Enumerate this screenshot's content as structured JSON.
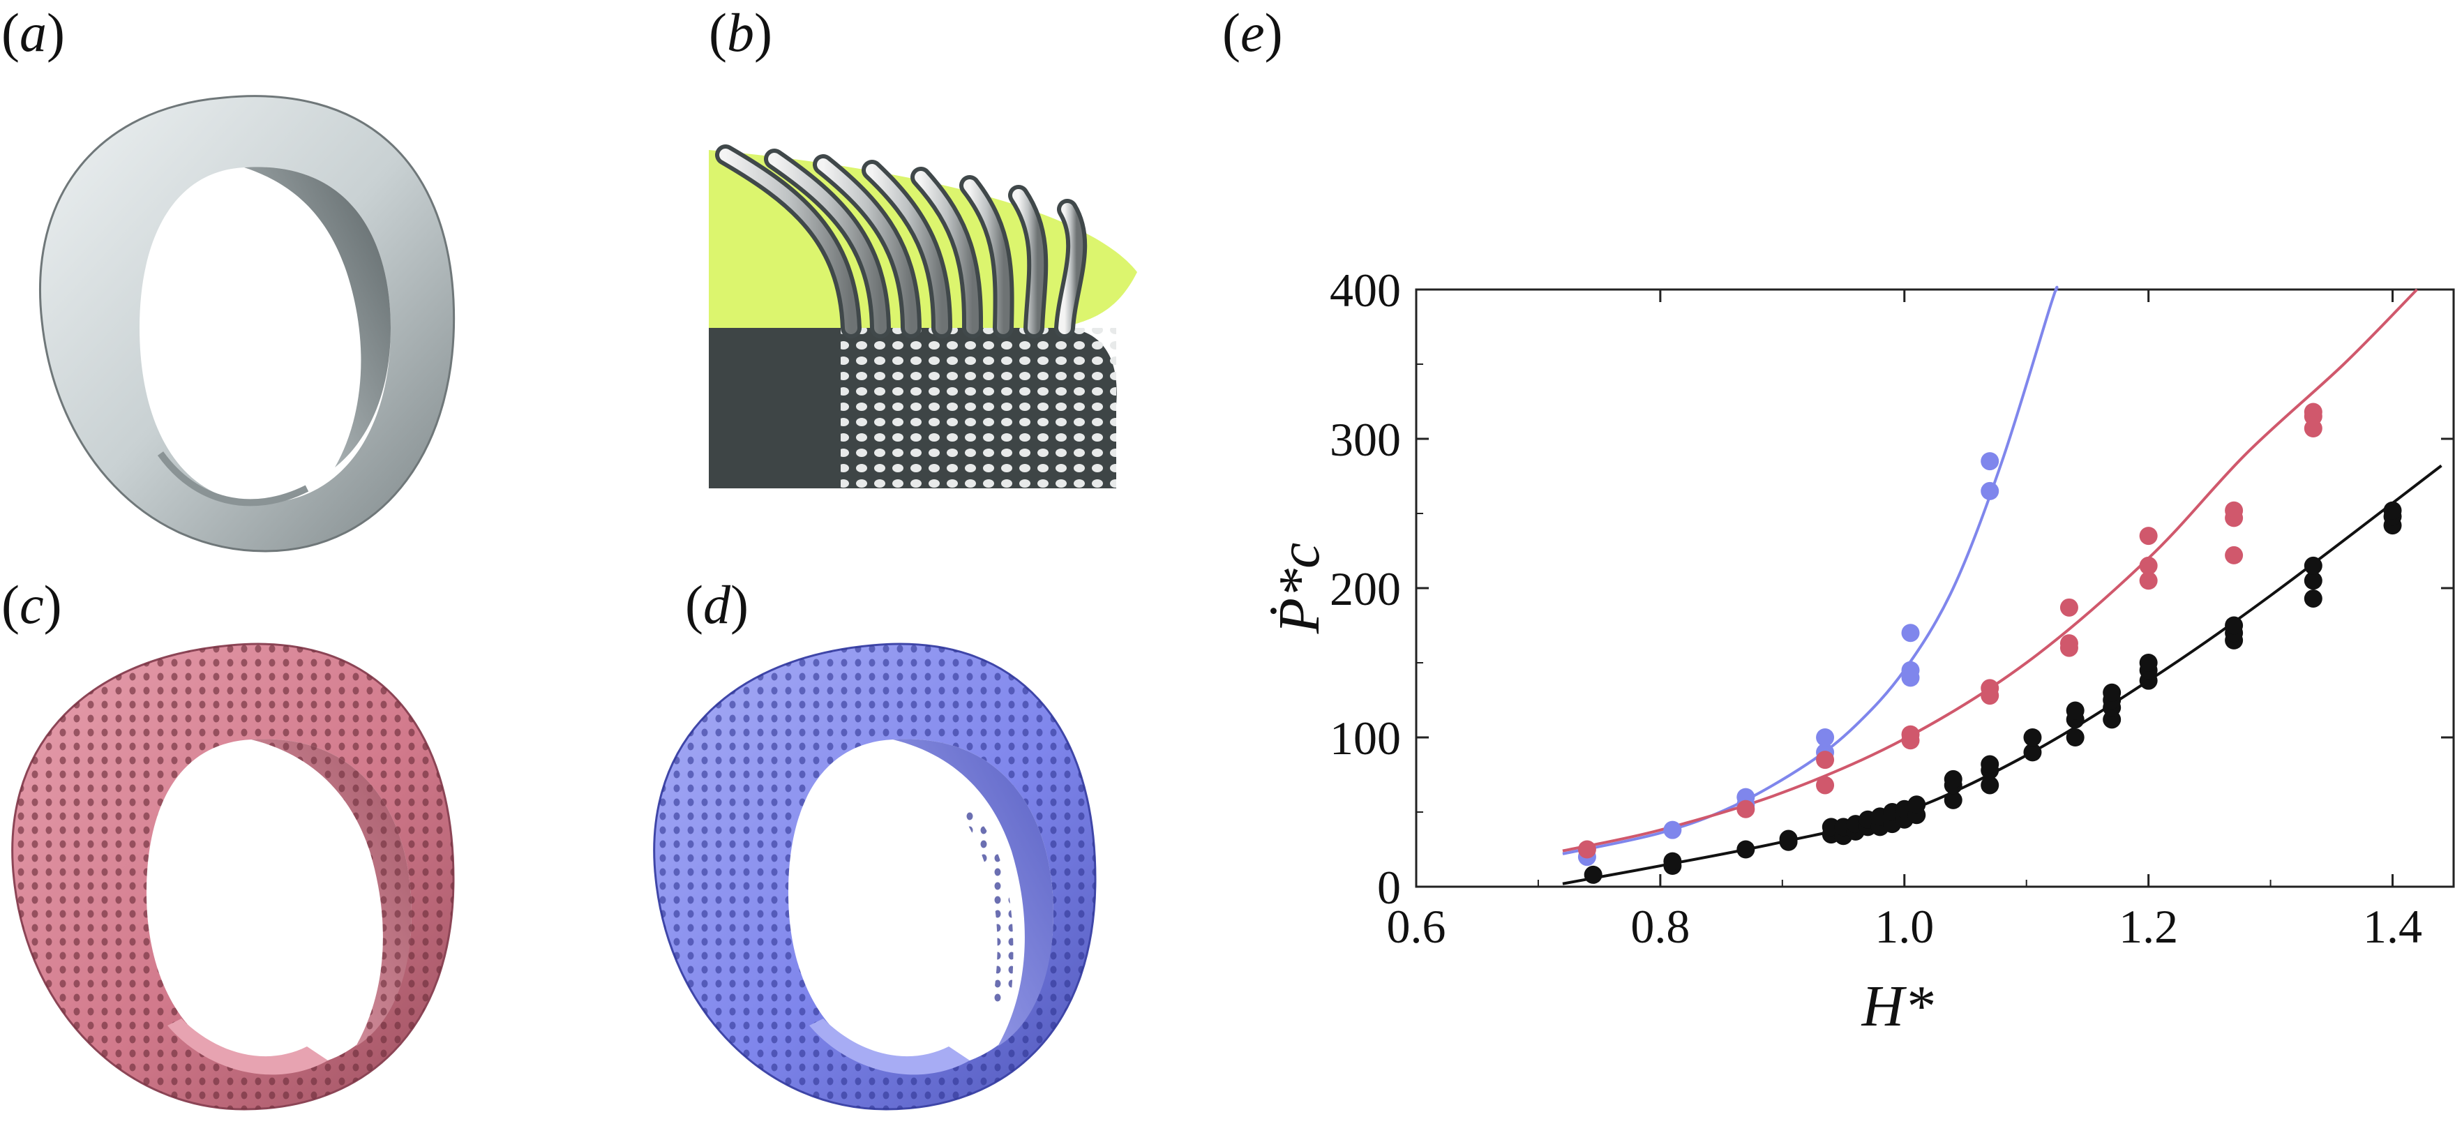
{
  "panels": {
    "a": {
      "label": "a",
      "color": "#c7d0d2"
    },
    "b": {
      "label": "b",
      "fill_color": "#dcf56e"
    },
    "c": {
      "label": "c",
      "color": "#d27a8c"
    },
    "d": {
      "label": "d",
      "color": "#7f86ec"
    },
    "e": {
      "label": "e"
    }
  },
  "chart_data": {
    "type": "scatter",
    "xlabel": "H*",
    "ylabel": "Ṗ*c",
    "xlim": [
      0.6,
      1.45
    ],
    "ylim": [
      0,
      400
    ],
    "xticks": [
      0.6,
      0.8,
      1.0,
      1.2,
      1.4
    ],
    "yticks": [
      0,
      100,
      200,
      300,
      400
    ],
    "xtick_labels": [
      "0.6",
      "0.8",
      "1.0",
      "1.2",
      "1.4"
    ],
    "ytick_labels": [
      "0",
      "100",
      "200",
      "300",
      "400"
    ],
    "grid": false,
    "series": [
      {
        "color": "#7f86ec",
        "points": [
          [
            0.74,
            20
          ],
          [
            0.81,
            38
          ],
          [
            0.87,
            55
          ],
          [
            0.87,
            60
          ],
          [
            0.935,
            90
          ],
          [
            0.935,
            100
          ],
          [
            1.005,
            140
          ],
          [
            1.005,
            145
          ],
          [
            1.005,
            170
          ],
          [
            1.07,
            265
          ],
          [
            1.07,
            285
          ]
        ],
        "fit": [
          [
            0.72,
            22
          ],
          [
            0.8,
            36
          ],
          [
            0.86,
            54
          ],
          [
            0.92,
            82
          ],
          [
            0.96,
            108
          ],
          [
            1.0,
            145
          ],
          [
            1.04,
            200
          ],
          [
            1.08,
            285
          ],
          [
            1.12,
            390
          ],
          [
            1.125,
            400
          ]
        ]
      },
      {
        "color": "#d0586c",
        "points": [
          [
            0.74,
            25
          ],
          [
            0.87,
            52
          ],
          [
            0.935,
            68
          ],
          [
            0.935,
            85
          ],
          [
            1.005,
            98
          ],
          [
            1.005,
            102
          ],
          [
            1.07,
            128
          ],
          [
            1.07,
            133
          ],
          [
            1.135,
            160
          ],
          [
            1.135,
            163
          ],
          [
            1.135,
            187
          ],
          [
            1.2,
            205
          ],
          [
            1.2,
            215
          ],
          [
            1.2,
            235
          ],
          [
            1.27,
            222
          ],
          [
            1.27,
            247
          ],
          [
            1.27,
            252
          ],
          [
            1.335,
            307
          ],
          [
            1.335,
            315
          ],
          [
            1.335,
            318
          ]
        ],
        "fit": [
          [
            0.72,
            24
          ],
          [
            0.8,
            38
          ],
          [
            0.9,
            63
          ],
          [
            1.0,
            99
          ],
          [
            1.1,
            150
          ],
          [
            1.2,
            220
          ],
          [
            1.28,
            290
          ],
          [
            1.36,
            350
          ],
          [
            1.42,
            400
          ]
        ]
      },
      {
        "color": "#111111",
        "points": [
          [
            0.745,
            8
          ],
          [
            0.81,
            14
          ],
          [
            0.81,
            17
          ],
          [
            0.87,
            25
          ],
          [
            0.905,
            30
          ],
          [
            0.905,
            32
          ],
          [
            0.94,
            35
          ],
          [
            0.94,
            40
          ],
          [
            0.95,
            34
          ],
          [
            0.95,
            40
          ],
          [
            0.96,
            37
          ],
          [
            0.96,
            42
          ],
          [
            0.97,
            40
          ],
          [
            0.97,
            45
          ],
          [
            0.98,
            40
          ],
          [
            0.98,
            47
          ],
          [
            0.99,
            42
          ],
          [
            0.99,
            50
          ],
          [
            1.0,
            45
          ],
          [
            1.0,
            52
          ],
          [
            1.01,
            48
          ],
          [
            1.01,
            55
          ],
          [
            1.04,
            58
          ],
          [
            1.04,
            68
          ],
          [
            1.04,
            72
          ],
          [
            1.07,
            68
          ],
          [
            1.07,
            78
          ],
          [
            1.07,
            82
          ],
          [
            1.105,
            90
          ],
          [
            1.105,
            100
          ],
          [
            1.14,
            100
          ],
          [
            1.14,
            112
          ],
          [
            1.14,
            118
          ],
          [
            1.17,
            112
          ],
          [
            1.17,
            120
          ],
          [
            1.17,
            125
          ],
          [
            1.17,
            130
          ],
          [
            1.2,
            138
          ],
          [
            1.2,
            145
          ],
          [
            1.2,
            150
          ],
          [
            1.27,
            165
          ],
          [
            1.27,
            170
          ],
          [
            1.27,
            175
          ],
          [
            1.335,
            193
          ],
          [
            1.335,
            205
          ],
          [
            1.335,
            215
          ],
          [
            1.4,
            242
          ],
          [
            1.4,
            248
          ],
          [
            1.4,
            252
          ]
        ],
        "fit": [
          [
            0.72,
            2
          ],
          [
            0.8,
            14
          ],
          [
            0.9,
            30
          ],
          [
            1.0,
            50
          ],
          [
            1.1,
            88
          ],
          [
            1.2,
            138
          ],
          [
            1.3,
            195
          ],
          [
            1.44,
            282
          ]
        ]
      }
    ]
  }
}
